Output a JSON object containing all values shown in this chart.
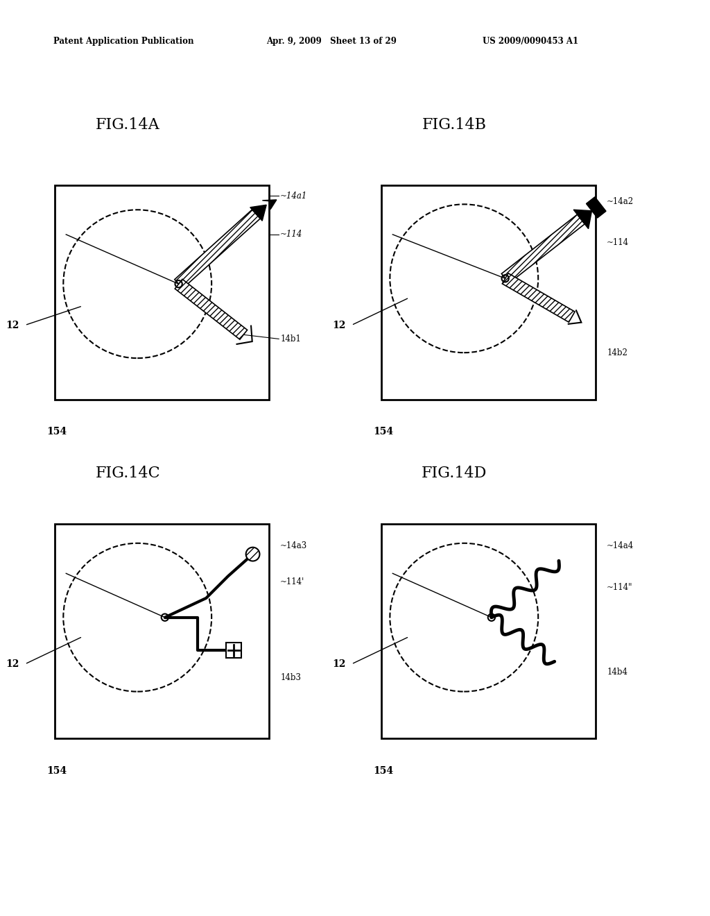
{
  "header_left": "Patent Application Publication",
  "header_mid": "Apr. 9, 2009   Sheet 13 of 29",
  "header_right": "US 2009/0090453 A1",
  "fig_titles": [
    "FIG.14A",
    "FIG.14B",
    "FIG.14C",
    "FIG.14D"
  ],
  "background_color": "#ffffff"
}
